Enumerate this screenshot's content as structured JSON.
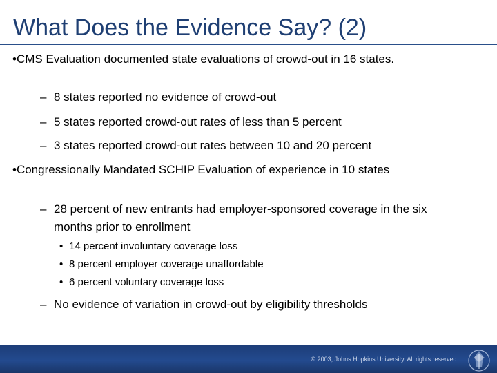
{
  "slide": {
    "title": "What Does the Evidence Say? (2)",
    "bullets": [
      {
        "text": "•CMS Evaluation documented state evaluations of crowd-out in 16 states.",
        "sub": [
          "8 states reported no evidence of crowd-out",
          "5 states reported crowd-out rates of less than 5 percent",
          "3 states reported crowd-out rates between 10 and 20 percent"
        ]
      },
      {
        "text": "•Congressionally Mandated SCHIP Evaluation of experience in 10 states",
        "sub": [
          "28 percent of new entrants had employer-sponsored coverage in the six months prior to enrollment",
          "No evidence of variation in crowd-out by eligibility thresholds"
        ],
        "subsub": [
          "14 percent involuntary coverage loss",
          "8 percent employer coverage unaffordable",
          "6 percent voluntary coverage loss"
        ]
      }
    ],
    "dash_glyph": "–",
    "dot_glyph": "•"
  },
  "footer": {
    "copyright": "© 2003, Johns Hopkins University. All rights reserved.",
    "logo_icon": "university-seal-icon"
  },
  "colors": {
    "title": "#1f3f73",
    "rule": "#2a4f8a",
    "footer": "#234a8e"
  }
}
